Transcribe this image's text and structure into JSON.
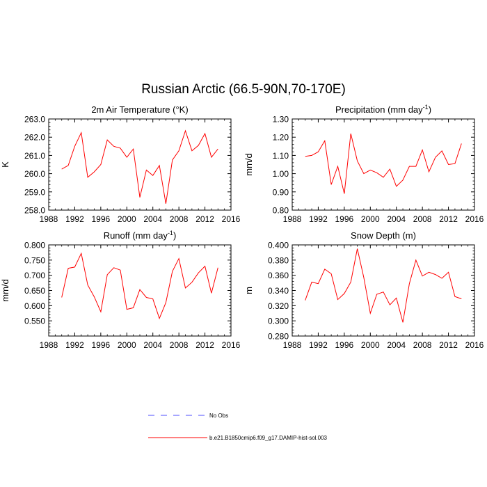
{
  "figure": {
    "title": "Russian Arctic (66.5-90N,70-170E)"
  },
  "legend": {
    "entries": [
      {
        "label": "No Obs",
        "style": "dashed",
        "color": "#4d4dff"
      },
      {
        "label": "b.e21.B1850cmip6.f09_g17.DAMIP-hist-sol.003",
        "style": "solid",
        "color": "#ff0000"
      }
    ]
  },
  "chart_data": [
    {
      "type": "line",
      "title": "2m Air Temperature (°K)",
      "ylabel": "K",
      "xlim": [
        1988,
        2016
      ],
      "ylim": [
        258.0,
        263.0
      ],
      "xticks": [
        1988,
        1992,
        1996,
        2000,
        2004,
        2008,
        2012,
        2016
      ],
      "yticks": [
        "258.0",
        "259.0",
        "260.0",
        "261.0",
        "262.0",
        "263.0"
      ],
      "series": [
        {
          "color": "#ff0000",
          "x": [
            1990,
            1991,
            1992,
            1993,
            1994,
            1995,
            1996,
            1997,
            1998,
            1999,
            2000,
            2001,
            2002,
            2003,
            2004,
            2005,
            2006,
            2007,
            2008,
            2009,
            2010,
            2011,
            2012,
            2013,
            2014
          ],
          "y": [
            260.25,
            260.45,
            261.5,
            262.25,
            259.8,
            260.1,
            260.5,
            261.85,
            261.5,
            261.4,
            260.9,
            261.35,
            258.7,
            260.2,
            259.9,
            260.45,
            258.35,
            260.75,
            261.25,
            262.35,
            261.25,
            261.55,
            262.2,
            260.9,
            261.35
          ]
        }
      ]
    },
    {
      "type": "line",
      "title": "Precipitation (mm day",
      "title_sup": "-1",
      "title_end": ")",
      "ylabel": "mm/d",
      "xlim": [
        1988,
        2016
      ],
      "ylim": [
        0.8,
        1.3
      ],
      "xticks": [
        1988,
        1992,
        1996,
        2000,
        2004,
        2008,
        2012,
        2016
      ],
      "yticks": [
        "0.80",
        "0.90",
        "1.00",
        "1.10",
        "1.20",
        "1.30"
      ],
      "series": [
        {
          "color": "#ff0000",
          "x": [
            1990,
            1991,
            1992,
            1993,
            1994,
            1995,
            1996,
            1997,
            1998,
            1999,
            2000,
            2001,
            2002,
            2003,
            2004,
            2005,
            2006,
            2007,
            2008,
            2009,
            2010,
            2011,
            2012,
            2013,
            2014
          ],
          "y": [
            1.095,
            1.1,
            1.12,
            1.18,
            0.94,
            1.04,
            0.89,
            1.22,
            1.07,
            1.0,
            1.02,
            1.005,
            0.98,
            1.025,
            0.93,
            0.965,
            1.04,
            1.04,
            1.13,
            1.01,
            1.09,
            1.125,
            1.05,
            1.055,
            1.165
          ]
        }
      ]
    },
    {
      "type": "line",
      "title": "Runoff (mm day",
      "title_sup": "-1",
      "title_end": ")",
      "ylabel": "mm/d",
      "xlim": [
        1988,
        2016
      ],
      "ylim": [
        0.5,
        0.8
      ],
      "xticks": [
        1988,
        1992,
        1996,
        2000,
        2004,
        2008,
        2012,
        2016
      ],
      "yticks": [
        "0.550",
        "0.600",
        "0.650",
        "0.700",
        "0.750",
        "0.800"
      ],
      "series": [
        {
          "color": "#ff0000",
          "x": [
            1990,
            1991,
            1992,
            1993,
            1994,
            1995,
            1996,
            1997,
            1998,
            1999,
            2000,
            2001,
            2002,
            2003,
            2004,
            2005,
            2006,
            2007,
            2008,
            2009,
            2010,
            2011,
            2012,
            2013,
            2014
          ],
          "y": [
            0.627,
            0.723,
            0.727,
            0.772,
            0.668,
            0.629,
            0.58,
            0.702,
            0.725,
            0.717,
            0.588,
            0.593,
            0.653,
            0.627,
            0.622,
            0.558,
            0.61,
            0.713,
            0.755,
            0.658,
            0.677,
            0.708,
            0.73,
            0.641,
            0.725
          ]
        }
      ]
    },
    {
      "type": "line",
      "title": "Snow Depth (m)",
      "ylabel": "m",
      "xlim": [
        1988,
        2016
      ],
      "ylim": [
        0.28,
        0.4
      ],
      "xticks": [
        1988,
        1992,
        1996,
        2000,
        2004,
        2008,
        2012,
        2016
      ],
      "yticks": [
        "0.280",
        "0.300",
        "0.320",
        "0.340",
        "0.360",
        "0.380",
        "0.400"
      ],
      "series": [
        {
          "color": "#ff0000",
          "x": [
            1990,
            1991,
            1992,
            1993,
            1994,
            1995,
            1996,
            1997,
            1998,
            1999,
            2000,
            2001,
            2002,
            2003,
            2004,
            2005,
            2006,
            2007,
            2008,
            2009,
            2010,
            2011,
            2012,
            2013,
            2014
          ],
          "y": [
            0.327,
            0.351,
            0.349,
            0.368,
            0.362,
            0.328,
            0.336,
            0.351,
            0.395,
            0.357,
            0.31,
            0.335,
            0.338,
            0.321,
            0.33,
            0.298,
            0.349,
            0.38,
            0.359,
            0.364,
            0.361,
            0.356,
            0.364,
            0.332,
            0.329
          ]
        }
      ]
    }
  ]
}
